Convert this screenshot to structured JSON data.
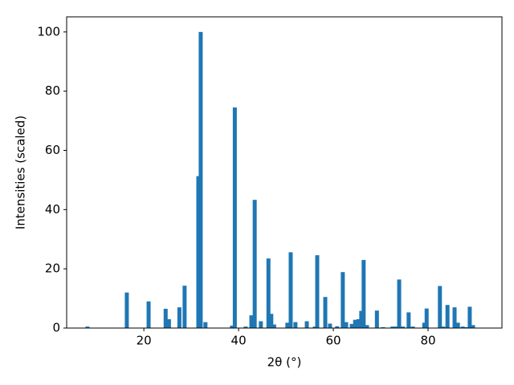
{
  "chart_data": {
    "type": "bar",
    "xlabel": "2θ (°)",
    "ylabel": "Intensities (scaled)",
    "color": "#1f77b4",
    "x": [
      8.1,
      16.4,
      21.0,
      24.6,
      25.3,
      27.5,
      28.6,
      31.5,
      32.0,
      33.0,
      38.6,
      39.2,
      41.5,
      42.7,
      43.4,
      44.7,
      46.3,
      46.9,
      47.5,
      50.3,
      51.0,
      52.0,
      54.4,
      56.1,
      56.6,
      58.3,
      59.3,
      60.8,
      62.0,
      62.7,
      63.9,
      64.6,
      65.3,
      65.9,
      66.4,
      67.1,
      69.2,
      70.5,
      72.5,
      73.2,
      73.9,
      74.7,
      75.9,
      76.8,
      79.2,
      79.7,
      82.5,
      83.2,
      84.1,
      85.6,
      86.3,
      87.3,
      88.0,
      88.8,
      89.5
    ],
    "values": [
      0.5,
      12,
      9,
      6.5,
      3,
      7,
      14.3,
      51.3,
      100,
      2,
      0.8,
      74.5,
      0.5,
      4.3,
      43.3,
      2.3,
      23.5,
      4.8,
      1.2,
      1.8,
      25.6,
      2,
      2.3,
      0.5,
      24.6,
      10.5,
      1.5,
      0.6,
      18.9,
      2,
      1.4,
      2.8,
      3,
      5.8,
      23,
      1,
      5.9,
      0.3,
      0.5,
      0.5,
      16.4,
      0.5,
      5.3,
      0.5,
      1.8,
      6.6,
      14.2,
      0.5,
      7.8,
      7,
      1.8,
      0.5,
      0.3,
      7.2,
      1
    ],
    "xlim": [
      3.7,
      95.6
    ],
    "ylim": [
      0,
      105.1
    ],
    "xticks": [
      20,
      40,
      60,
      80
    ],
    "yticks": [
      0,
      20,
      40,
      60,
      80,
      100
    ]
  }
}
